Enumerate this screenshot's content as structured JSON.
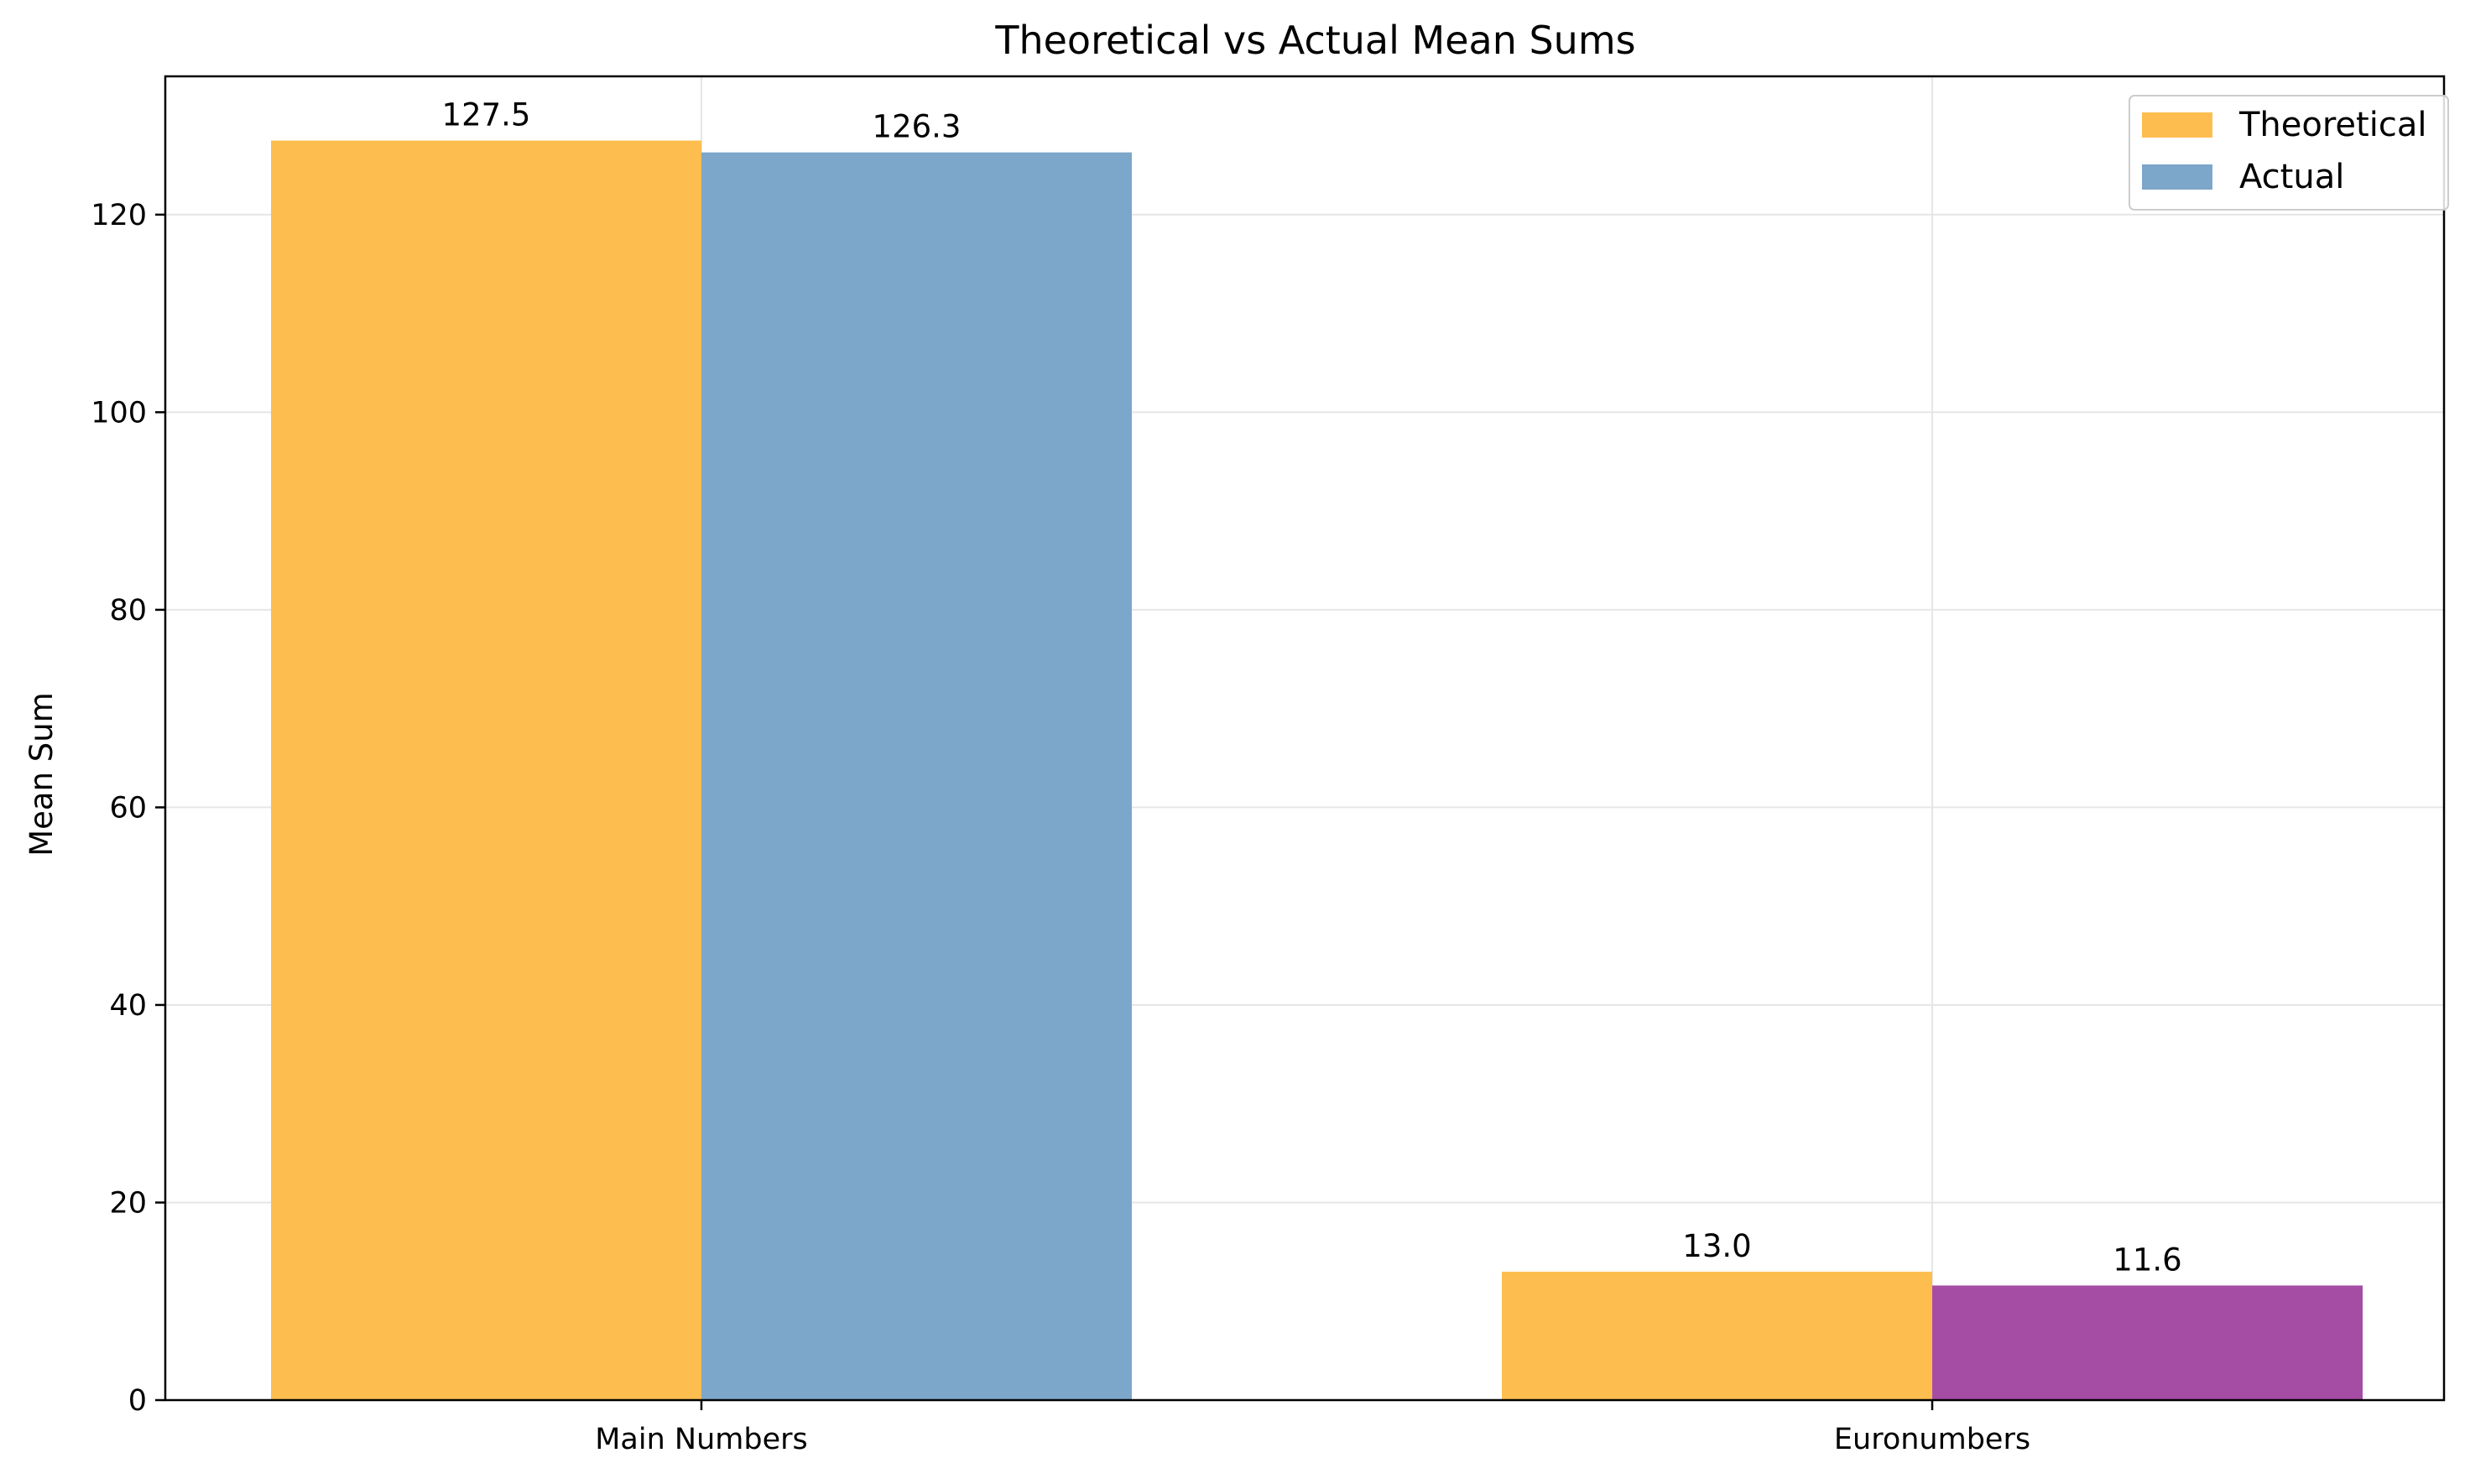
{
  "chart_data": {
    "type": "bar",
    "title": "Theoretical vs Actual Mean Sums",
    "xlabel": "",
    "ylabel": "Mean Sum",
    "categories": [
      "Main Numbers",
      "Euronumbers"
    ],
    "series": [
      {
        "name": "Theoretical",
        "values": [
          127.5,
          13.0
        ],
        "colors": [
          "#fdbe4f",
          "#fdbe4f"
        ]
      },
      {
        "name": "Actual",
        "values": [
          126.3,
          11.6
        ],
        "colors": [
          "#7ca6ca",
          "#a54ca4"
        ]
      }
    ],
    "data_labels": [
      [
        "127.5",
        "13.0"
      ],
      [
        "126.3",
        "11.6"
      ]
    ],
    "ylim": [
      0,
      134
    ],
    "yticks": [
      0,
      20,
      40,
      60,
      80,
      100,
      120
    ],
    "grid": true,
    "legend": "top-right",
    "legend_colors": [
      "#fdbe4f",
      "#7ca6ca"
    ]
  }
}
